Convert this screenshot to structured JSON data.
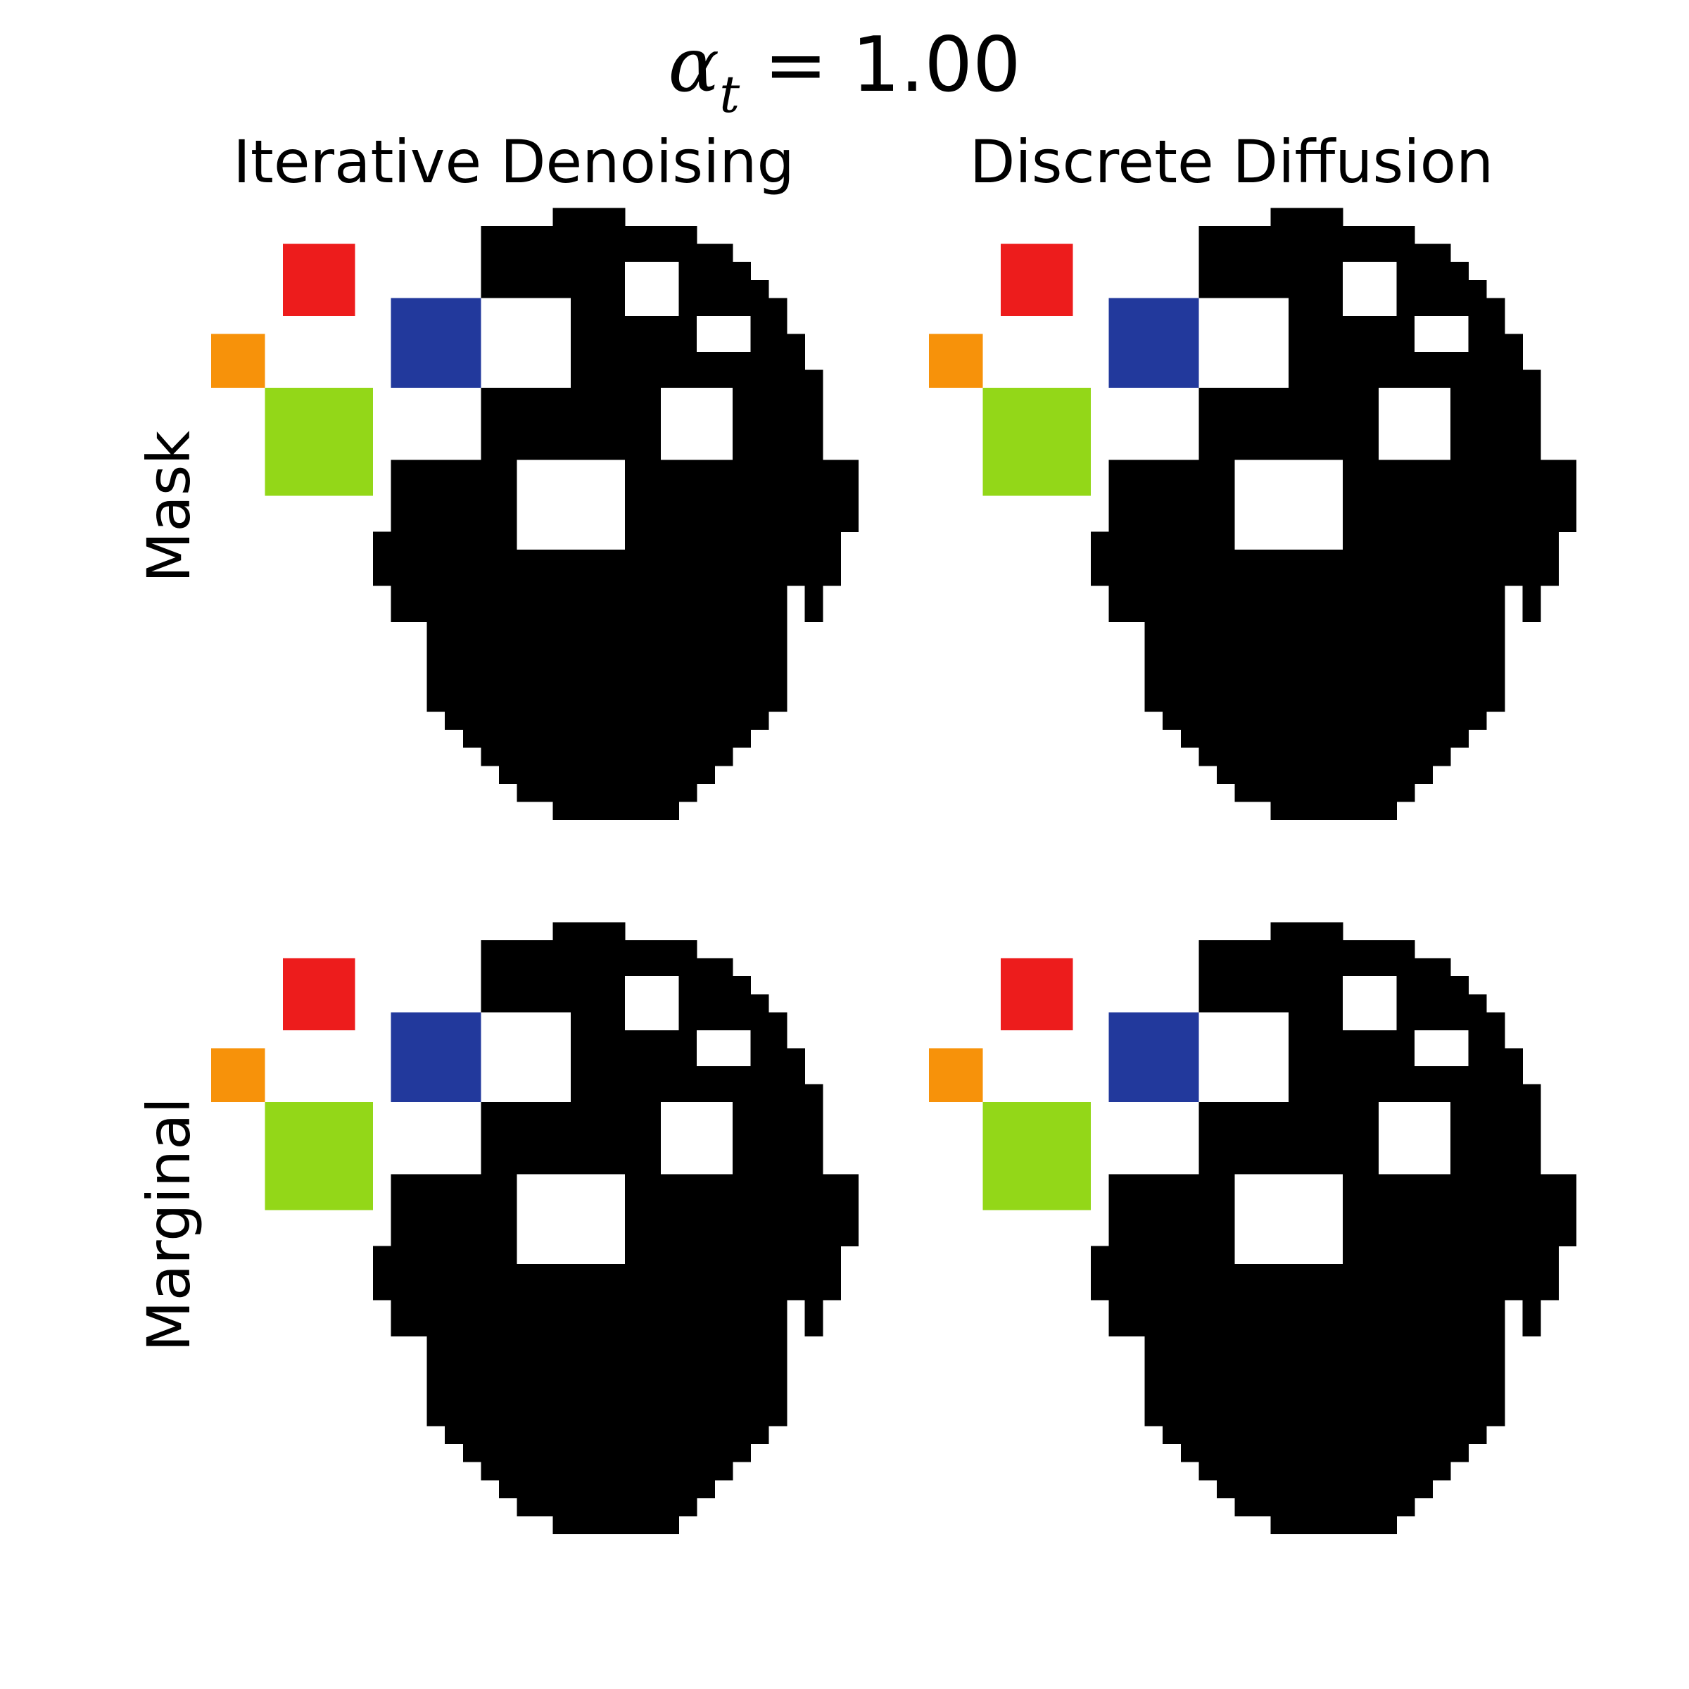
{
  "figure": {
    "title_symbol": "α",
    "title_subscript": "t",
    "title_rest": " = 1.00",
    "columns": [
      "Iterative Denoising",
      "Discrete Diffusion"
    ],
    "rows": [
      "Mask",
      "Marginal"
    ]
  },
  "colors": {
    "shape": "#000000",
    "red": "#ed1c1c",
    "orange": "#f7920a",
    "green": "#93d718",
    "blue": "#22399c",
    "background": "#ffffff"
  },
  "pixel_grid": {
    "cols": 36,
    "rows": 36,
    "black_runs": [
      [],
      [
        [
          19,
          23
        ]
      ],
      [
        [
          15,
          27
        ]
      ],
      [
        [
          15,
          29
        ]
      ],
      [
        [
          15,
          30
        ]
      ],
      [
        [
          15,
          31
        ]
      ],
      [
        [
          15,
          32
        ]
      ],
      [
        [
          15,
          32
        ]
      ],
      [
        [
          15,
          33
        ]
      ],
      [
        [
          15,
          33
        ]
      ],
      [
        [
          15,
          34
        ]
      ],
      [
        [
          15,
          34
        ]
      ],
      [
        [
          15,
          34
        ]
      ],
      [
        [
          15,
          34
        ]
      ],
      [
        [
          15,
          34
        ]
      ],
      [
        [
          10,
          36
        ]
      ],
      [
        [
          10,
          36
        ]
      ],
      [
        [
          10,
          36
        ]
      ],
      [
        [
          10,
          36
        ]
      ],
      [
        [
          9,
          35
        ]
      ],
      [
        [
          9,
          35
        ]
      ],
      [
        [
          9,
          35
        ]
      ],
      [
        [
          10,
          32
        ],
        [
          33,
          34
        ]
      ],
      [
        [
          10,
          32
        ],
        [
          33,
          34
        ]
      ],
      [
        [
          12,
          32
        ]
      ],
      [
        [
          12,
          32
        ]
      ],
      [
        [
          12,
          32
        ]
      ],
      [
        [
          12,
          32
        ]
      ],
      [
        [
          12,
          32
        ]
      ],
      [
        [
          13,
          31
        ]
      ],
      [
        [
          14,
          30
        ]
      ],
      [
        [
          15,
          29
        ]
      ],
      [
        [
          16,
          28
        ]
      ],
      [
        [
          17,
          27
        ]
      ],
      [
        [
          19,
          26
        ]
      ],
      []
    ],
    "white_rects": [
      {
        "c": 23,
        "r": 4,
        "w": 3,
        "h": 3
      },
      {
        "c": 15,
        "r": 6,
        "w": 5,
        "h": 5
      },
      {
        "c": 27,
        "r": 7,
        "w": 3,
        "h": 2
      },
      {
        "c": 25,
        "r": 11,
        "w": 4,
        "h": 4
      },
      {
        "c": 17,
        "r": 15,
        "w": 6,
        "h": 5
      }
    ],
    "color_rects": [
      {
        "color": "red",
        "c": 4,
        "r": 3,
        "w": 4,
        "h": 4
      },
      {
        "color": "orange",
        "c": 0,
        "r": 8,
        "w": 3,
        "h": 3
      },
      {
        "color": "green",
        "c": 3,
        "r": 11,
        "w": 6,
        "h": 6
      },
      {
        "color": "blue",
        "c": 10,
        "r": 6,
        "w": 5,
        "h": 5
      }
    ]
  }
}
